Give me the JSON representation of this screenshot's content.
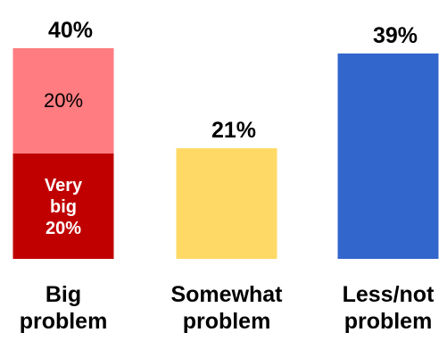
{
  "chart_data": {
    "type": "bar",
    "stacked": true,
    "title": "",
    "xlabel": "",
    "ylabel": "",
    "ylim": [
      0,
      40
    ],
    "grid": false,
    "legend": "none",
    "categories": [
      {
        "lines": [
          "Big",
          "problem"
        ]
      },
      {
        "lines": [
          "Somewhat",
          "problem"
        ]
      },
      {
        "lines": [
          "Less/not",
          "problem"
        ]
      }
    ],
    "totals": [
      40,
      21,
      39
    ],
    "total_labels": [
      "40%",
      "21%",
      "39%"
    ],
    "stacks": [
      [
        {
          "value": 20,
          "color": "#c00000",
          "label_lines": [
            "Very",
            "big",
            "20%"
          ],
          "label_color": "#ffffff",
          "bold": true
        },
        {
          "value": 20,
          "color": "#ff7c80",
          "label_lines": [
            "20%"
          ],
          "label_color": "#000000",
          "bold": false
        }
      ],
      [
        {
          "value": 21,
          "color": "#ffd966",
          "label_lines": [],
          "label_color": "#000000",
          "bold": false
        }
      ],
      [
        {
          "value": 39,
          "color": "#3366cc",
          "label_lines": [],
          "label_color": "#000000",
          "bold": false
        }
      ]
    ]
  }
}
